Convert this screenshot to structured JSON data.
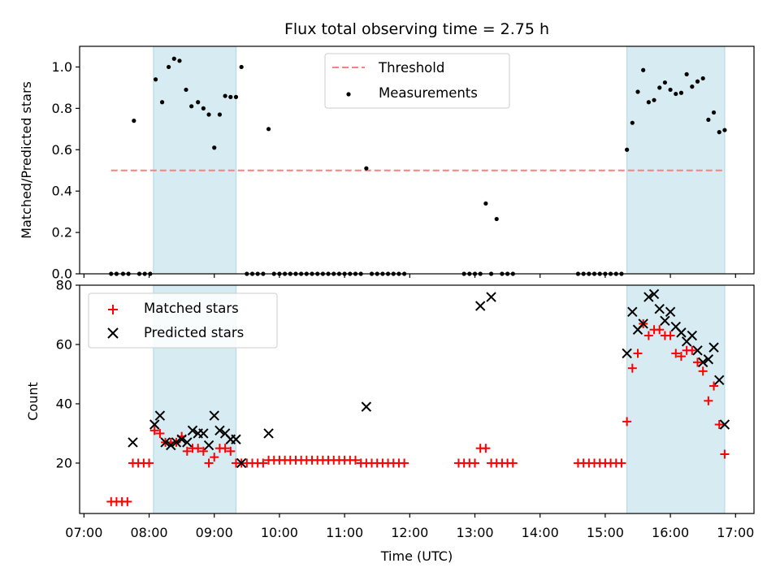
{
  "chart_data": [
    {
      "type": "scatter",
      "panel": "top",
      "title": "Flux total observing time = 2.75 h",
      "ylabel": "Matched/Predicted stars",
      "xlabel": "",
      "ylim": [
        0.0,
        1.1
      ],
      "xlim": [
        "06:56",
        "17:17"
      ],
      "yticks": [
        "0.0",
        "0.2",
        "0.4",
        "0.6",
        "0.8",
        "1.0"
      ],
      "legend_position": "upper center",
      "threshold": {
        "name": "Threshold",
        "value": 0.5,
        "x_range": [
          "07:25",
          "16:50"
        ],
        "color": "#ff7f7f"
      },
      "shaded_intervals": [
        [
          "08:04",
          "09:20"
        ],
        [
          "15:20",
          "16:50"
        ]
      ],
      "series": [
        {
          "name": "Measurements",
          "color": "#000000",
          "points": [
            [
              "07:25",
              0
            ],
            [
              "07:30",
              0
            ],
            [
              "07:36",
              0
            ],
            [
              "07:41",
              0
            ],
            [
              "07:46",
              0.74
            ],
            [
              "07:51",
              0
            ],
            [
              "07:56",
              0
            ],
            [
              "08:01",
              0
            ],
            [
              "08:06",
              0.94
            ],
            [
              "08:12",
              0.83
            ],
            [
              "08:18",
              1.0
            ],
            [
              "08:23",
              1.04
            ],
            [
              "08:28",
              1.03
            ],
            [
              "08:34",
              0.89
            ],
            [
              "08:39",
              0.81
            ],
            [
              "08:45",
              0.83
            ],
            [
              "08:50",
              0.8
            ],
            [
              "08:55",
              0.77
            ],
            [
              "09:00",
              0.61
            ],
            [
              "09:05",
              0.77
            ],
            [
              "09:10",
              0.86
            ],
            [
              "09:15",
              0.855
            ],
            [
              "09:20",
              0.855
            ],
            [
              "09:25",
              1.0
            ],
            [
              "09:30",
              0
            ],
            [
              "09:35",
              0
            ],
            [
              "09:40",
              0
            ],
            [
              "09:45",
              0
            ],
            [
              "09:50",
              0.7
            ],
            [
              "09:55",
              0
            ],
            [
              "10:00",
              0
            ],
            [
              "10:05",
              0
            ],
            [
              "10:10",
              0
            ],
            [
              "10:15",
              0
            ],
            [
              "10:20",
              0
            ],
            [
              "10:25",
              0
            ],
            [
              "10:30",
              0
            ],
            [
              "10:35",
              0
            ],
            [
              "10:40",
              0
            ],
            [
              "10:45",
              0
            ],
            [
              "10:50",
              0
            ],
            [
              "10:55",
              0
            ],
            [
              "11:00",
              0
            ],
            [
              "11:05",
              0
            ],
            [
              "11:10",
              0
            ],
            [
              "11:15",
              0
            ],
            [
              "11:20",
              0.51
            ],
            [
              "11:25",
              0
            ],
            [
              "11:30",
              0
            ],
            [
              "11:35",
              0
            ],
            [
              "11:40",
              0
            ],
            [
              "11:45",
              0
            ],
            [
              "11:50",
              0
            ],
            [
              "11:55",
              0
            ],
            [
              "12:50",
              0
            ],
            [
              "12:55",
              0
            ],
            [
              "13:00",
              0
            ],
            [
              "13:05",
              0
            ],
            [
              "13:10",
              0.34
            ],
            [
              "13:15",
              0
            ],
            [
              "13:20",
              0.265
            ],
            [
              "13:25",
              0
            ],
            [
              "13:30",
              0
            ],
            [
              "13:35",
              0
            ],
            [
              "14:35",
              0
            ],
            [
              "14:40",
              0
            ],
            [
              "14:45",
              0
            ],
            [
              "14:50",
              0
            ],
            [
              "14:55",
              0
            ],
            [
              "15:00",
              0
            ],
            [
              "15:05",
              0
            ],
            [
              "15:10",
              0
            ],
            [
              "15:15",
              0
            ],
            [
              "15:20",
              0.6
            ],
            [
              "15:25",
              0.73
            ],
            [
              "15:30",
              0.88
            ],
            [
              "15:35",
              0.985
            ],
            [
              "15:40",
              0.83
            ],
            [
              "15:45",
              0.84
            ],
            [
              "15:50",
              0.9
            ],
            [
              "15:55",
              0.925
            ],
            [
              "16:00",
              0.89
            ],
            [
              "16:05",
              0.87
            ],
            [
              "16:10",
              0.875
            ],
            [
              "16:15",
              0.965
            ],
            [
              "16:20",
              0.905
            ],
            [
              "16:25",
              0.93
            ],
            [
              "16:30",
              0.945
            ],
            [
              "16:35",
              0.745
            ],
            [
              "16:40",
              0.78
            ],
            [
              "16:45",
              0.685
            ],
            [
              "16:50",
              0.695
            ]
          ]
        }
      ]
    },
    {
      "type": "scatter",
      "panel": "bottom",
      "ylabel": "Count",
      "xlabel": "Time (UTC)",
      "ylim": [
        3,
        80
      ],
      "xlim": [
        "06:56",
        "17:17"
      ],
      "yticks": [
        "20",
        "40",
        "60",
        "80"
      ],
      "xticks": [
        "07:00",
        "08:00",
        "09:00",
        "10:00",
        "11:00",
        "12:00",
        "13:00",
        "14:00",
        "15:00",
        "16:00",
        "17:00"
      ],
      "legend_position": "upper left",
      "shaded_intervals": [
        [
          "08:04",
          "09:20"
        ],
        [
          "15:20",
          "16:50"
        ]
      ],
      "series": [
        {
          "name": "Matched stars",
          "marker": "+",
          "color": "#ff0000",
          "points": [
            [
              "07:25",
              7
            ],
            [
              "07:30",
              7
            ],
            [
              "07:35",
              7
            ],
            [
              "07:40",
              7
            ],
            [
              "07:45",
              20
            ],
            [
              "07:50",
              20
            ],
            [
              "07:55",
              20
            ],
            [
              "08:00",
              20
            ],
            [
              "08:05",
              31
            ],
            [
              "08:10",
              30
            ],
            [
              "08:15",
              27
            ],
            [
              "08:20",
              27
            ],
            [
              "08:25",
              27
            ],
            [
              "08:30",
              29
            ],
            [
              "08:35",
              24
            ],
            [
              "08:40",
              25
            ],
            [
              "08:45",
              25
            ],
            [
              "08:50",
              24
            ],
            [
              "08:55",
              20
            ],
            [
              "09:00",
              22
            ],
            [
              "09:05",
              25
            ],
            [
              "09:10",
              25
            ],
            [
              "09:15",
              24
            ],
            [
              "09:20",
              20
            ],
            [
              "09:25",
              20
            ],
            [
              "09:30",
              20
            ],
            [
              "09:35",
              20
            ],
            [
              "09:40",
              20
            ],
            [
              "09:45",
              20
            ],
            [
              "09:50",
              21
            ],
            [
              "09:55",
              21
            ],
            [
              "10:00",
              21
            ],
            [
              "10:05",
              21
            ],
            [
              "10:10",
              21
            ],
            [
              "10:15",
              21
            ],
            [
              "10:20",
              21
            ],
            [
              "10:25",
              21
            ],
            [
              "10:30",
              21
            ],
            [
              "10:35",
              21
            ],
            [
              "10:40",
              21
            ],
            [
              "10:45",
              21
            ],
            [
              "10:50",
              21
            ],
            [
              "10:55",
              21
            ],
            [
              "11:00",
              21
            ],
            [
              "11:05",
              21
            ],
            [
              "11:10",
              21
            ],
            [
              "11:15",
              20
            ],
            [
              "11:20",
              20
            ],
            [
              "11:25",
              20
            ],
            [
              "11:30",
              20
            ],
            [
              "11:35",
              20
            ],
            [
              "11:40",
              20
            ],
            [
              "11:45",
              20
            ],
            [
              "11:50",
              20
            ],
            [
              "11:55",
              20
            ],
            [
              "12:45",
              20
            ],
            [
              "12:50",
              20
            ],
            [
              "12:55",
              20
            ],
            [
              "13:00",
              20
            ],
            [
              "13:05",
              25
            ],
            [
              "13:10",
              25
            ],
            [
              "13:15",
              20
            ],
            [
              "13:20",
              20
            ],
            [
              "13:25",
              20
            ],
            [
              "13:30",
              20
            ],
            [
              "13:35",
              20
            ],
            [
              "14:35",
              20
            ],
            [
              "14:40",
              20
            ],
            [
              "14:45",
              20
            ],
            [
              "14:50",
              20
            ],
            [
              "14:55",
              20
            ],
            [
              "15:00",
              20
            ],
            [
              "15:05",
              20
            ],
            [
              "15:10",
              20
            ],
            [
              "15:15",
              20
            ],
            [
              "15:20",
              34
            ],
            [
              "15:25",
              52
            ],
            [
              "15:30",
              57
            ],
            [
              "15:35",
              67
            ],
            [
              "15:40",
              63
            ],
            [
              "15:45",
              65
            ],
            [
              "15:50",
              65
            ],
            [
              "15:55",
              63
            ],
            [
              "16:00",
              63
            ],
            [
              "16:05",
              57
            ],
            [
              "16:10",
              56
            ],
            [
              "16:15",
              58
            ],
            [
              "16:20",
              58
            ],
            [
              "16:25",
              54
            ],
            [
              "16:30",
              51
            ],
            [
              "16:35",
              41
            ],
            [
              "16:40",
              46
            ],
            [
              "16:45",
              33
            ],
            [
              "16:50",
              23
            ]
          ]
        },
        {
          "name": "Predicted stars",
          "marker": "x",
          "color": "#000000",
          "points": [
            [
              "07:45",
              27
            ],
            [
              "08:05",
              33
            ],
            [
              "08:10",
              36
            ],
            [
              "08:15",
              27
            ],
            [
              "08:20",
              26
            ],
            [
              "08:25",
              27
            ],
            [
              "08:30",
              28
            ],
            [
              "08:35",
              27
            ],
            [
              "08:40",
              31
            ],
            [
              "08:45",
              30
            ],
            [
              "08:50",
              30
            ],
            [
              "08:55",
              26
            ],
            [
              "09:00",
              36
            ],
            [
              "09:05",
              31
            ],
            [
              "09:10",
              30
            ],
            [
              "09:15",
              28
            ],
            [
              "09:20",
              28
            ],
            [
              "09:25",
              20
            ],
            [
              "09:50",
              30
            ],
            [
              "11:20",
              39
            ],
            [
              "13:05",
              73
            ],
            [
              "13:15",
              76
            ],
            [
              "15:20",
              57
            ],
            [
              "15:25",
              71
            ],
            [
              "15:30",
              65
            ],
            [
              "15:35",
              67
            ],
            [
              "15:40",
              76
            ],
            [
              "15:45",
              77
            ],
            [
              "15:50",
              72
            ],
            [
              "15:55",
              68
            ],
            [
              "16:00",
              71
            ],
            [
              "16:05",
              66
            ],
            [
              "16:10",
              64
            ],
            [
              "16:15",
              61
            ],
            [
              "16:20",
              63
            ],
            [
              "16:25",
              58
            ],
            [
              "16:30",
              54
            ],
            [
              "16:35",
              55
            ],
            [
              "16:40",
              59
            ],
            [
              "16:45",
              48
            ],
            [
              "16:50",
              33
            ]
          ]
        }
      ]
    }
  ]
}
